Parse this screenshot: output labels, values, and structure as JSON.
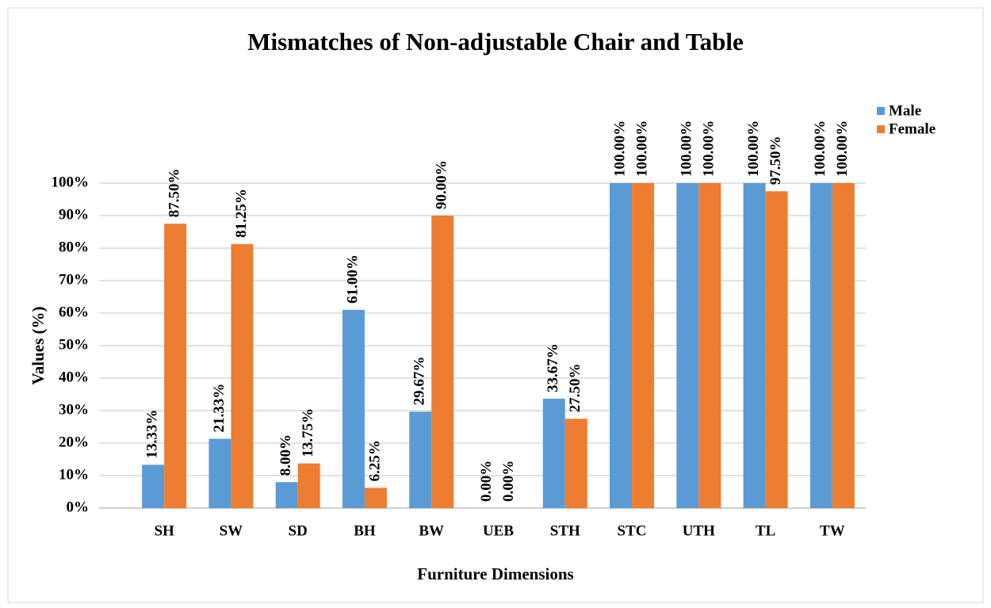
{
  "chart_data": {
    "type": "bar",
    "title": "Mismatches of Non-adjustable Chair and Table",
    "x_label": "Furniture Dimensions",
    "y_label": "Values  (%)",
    "categories": [
      "SH",
      "SW",
      "SD",
      "BH",
      "BW",
      "UEB",
      "STH",
      "STC",
      "UTH",
      "TL",
      "TW"
    ],
    "series": [
      {
        "name": "Male",
        "color": "#5b9bd5",
        "values": [
          13.33,
          21.33,
          8,
          61,
          29.67,
          0,
          33.67,
          100,
          100,
          100,
          100
        ],
        "value_labels": [
          "13.33%",
          "21.33%",
          "8.00%",
          "61.00%",
          "29.67%",
          "0.00%",
          "33.67%",
          "100.00%",
          "100.00%",
          "100.00%",
          "100.00%"
        ]
      },
      {
        "name": "Female",
        "color": "#ed7d31",
        "values": [
          87.5,
          81.25,
          13.75,
          6.25,
          90,
          0,
          27.5,
          100,
          100,
          97.5,
          100
        ],
        "value_labels": [
          "87.50%",
          "81.25%",
          "13.75%",
          "6.25%",
          "90.00%",
          "0.00%",
          "27.50%",
          "100.00%",
          "100.00%",
          "97.50%",
          "100.00%"
        ]
      }
    ],
    "ylim": [
      0,
      100
    ],
    "yticks": [
      {
        "value": 0,
        "label": "0%"
      },
      {
        "value": 10,
        "label": "10%"
      },
      {
        "value": 20,
        "label": "20%"
      },
      {
        "value": 30,
        "label": "30%"
      },
      {
        "value": 40,
        "label": "40%"
      },
      {
        "value": 50,
        "label": "50%"
      },
      {
        "value": 60,
        "label": "60%"
      },
      {
        "value": 70,
        "label": "70%"
      },
      {
        "value": 80,
        "label": "80%"
      },
      {
        "value": 90,
        "label": "90%"
      },
      {
        "value": 100,
        "label": "100%"
      }
    ],
    "grid": true,
    "legend": "right"
  }
}
